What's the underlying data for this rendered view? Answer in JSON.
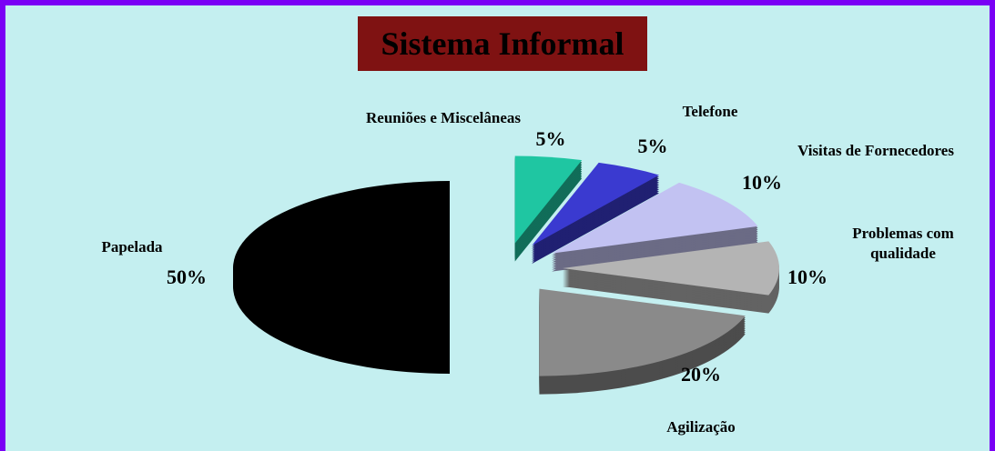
{
  "chart_data": {
    "type": "pie",
    "title": "Sistema Informal",
    "categories": [
      "Reuniões e Miscelâneas",
      "Telefone",
      "Visitas de Fornecedores",
      "Problemas com qualidade",
      "Agilização",
      "Papelada"
    ],
    "values": [
      5,
      5,
      10,
      10,
      20,
      50
    ],
    "value_labels": [
      "5%",
      "5%",
      "10%",
      "10%",
      "20%",
      "50%"
    ],
    "colors": [
      "#1fc6a2",
      "#3a3ad0",
      "#c2c2f2",
      "#b4b4b4",
      "#8a8a8a",
      "#000000"
    ]
  }
}
